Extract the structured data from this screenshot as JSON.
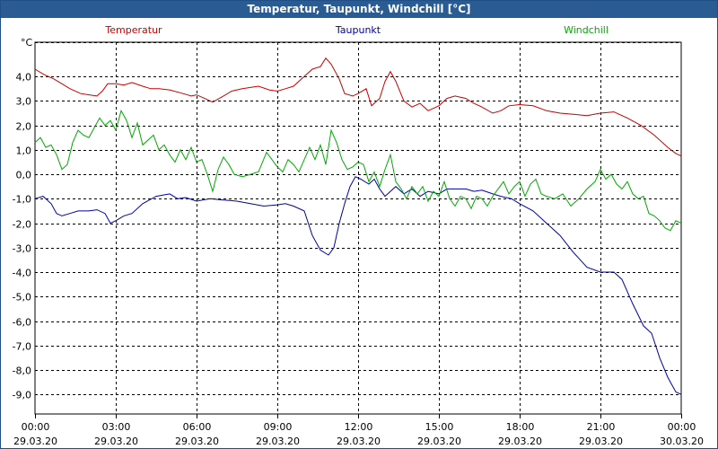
{
  "window": {
    "title": "Temperatur, Taupunkt, Windchill [°C]"
  },
  "chart_data": {
    "type": "line",
    "title": "Temperatur, Taupunkt, Windchill [°C]",
    "ylabel": "°C",
    "xlabel": "",
    "ylim": [
      -9.8,
      5.4
    ],
    "grid": true,
    "legend": "top",
    "y_ticks": [
      {
        "value": 4,
        "label": "4,0"
      },
      {
        "value": 3,
        "label": "3,0"
      },
      {
        "value": 2,
        "label": "2,0"
      },
      {
        "value": 1,
        "label": "1,0"
      },
      {
        "value": 0,
        "label": "0,0"
      },
      {
        "value": -1,
        "label": "-1,0"
      },
      {
        "value": -2,
        "label": "-2,0"
      },
      {
        "value": -3,
        "label": "-3,0"
      },
      {
        "value": -4,
        "label": "-4,0"
      },
      {
        "value": -5,
        "label": "-5,0"
      },
      {
        "value": -6,
        "label": "-6,0"
      },
      {
        "value": -7,
        "label": "-7,0"
      },
      {
        "value": -8,
        "label": "-8,0"
      },
      {
        "value": -9,
        "label": "-9,0"
      }
    ],
    "x_ticks": [
      {
        "hour": 0,
        "time": "00:00",
        "date": "29.03.20"
      },
      {
        "hour": 3,
        "time": "03:00",
        "date": "29.03.20"
      },
      {
        "hour": 6,
        "time": "06:00",
        "date": "29.03.20"
      },
      {
        "hour": 9,
        "time": "09:00",
        "date": "29.03.20"
      },
      {
        "hour": 12,
        "time": "12:00",
        "date": "29.03.20"
      },
      {
        "hour": 15,
        "time": "15:00",
        "date": "29.03.20"
      },
      {
        "hour": 18,
        "time": "18:00",
        "date": "29.03.20"
      },
      {
        "hour": 21,
        "time": "21:00",
        "date": "29.03.20"
      },
      {
        "hour": 24,
        "time": "00:00",
        "date": "30.03.20"
      }
    ],
    "series": [
      {
        "name": "Temperatur",
        "color": "#cc0000",
        "points": [
          [
            0,
            4.3
          ],
          [
            0.3,
            4.1
          ],
          [
            0.7,
            3.9
          ],
          [
            1.0,
            3.7
          ],
          [
            1.3,
            3.5
          ],
          [
            1.7,
            3.3
          ],
          [
            2.0,
            3.25
          ],
          [
            2.3,
            3.2
          ],
          [
            2.5,
            3.4
          ],
          [
            2.7,
            3.7
          ],
          [
            3.0,
            3.7
          ],
          [
            3.3,
            3.65
          ],
          [
            3.6,
            3.75
          ],
          [
            4.0,
            3.6
          ],
          [
            4.3,
            3.5
          ],
          [
            4.6,
            3.5
          ],
          [
            5.0,
            3.45
          ],
          [
            5.5,
            3.3
          ],
          [
            5.8,
            3.2
          ],
          [
            6.0,
            3.25
          ],
          [
            6.3,
            3.1
          ],
          [
            6.6,
            2.95
          ],
          [
            7.0,
            3.2
          ],
          [
            7.3,
            3.4
          ],
          [
            7.7,
            3.5
          ],
          [
            8.0,
            3.55
          ],
          [
            8.3,
            3.6
          ],
          [
            8.7,
            3.45
          ],
          [
            9.0,
            3.4
          ],
          [
            9.3,
            3.5
          ],
          [
            9.6,
            3.6
          ],
          [
            10.0,
            4.0
          ],
          [
            10.3,
            4.3
          ],
          [
            10.6,
            4.4
          ],
          [
            10.8,
            4.75
          ],
          [
            11.0,
            4.5
          ],
          [
            11.3,
            3.9
          ],
          [
            11.5,
            3.3
          ],
          [
            11.8,
            3.2
          ],
          [
            12.0,
            3.3
          ],
          [
            12.3,
            3.5
          ],
          [
            12.5,
            2.8
          ],
          [
            12.8,
            3.1
          ],
          [
            13.0,
            3.8
          ],
          [
            13.2,
            4.2
          ],
          [
            13.4,
            3.8
          ],
          [
            13.7,
            3.0
          ],
          [
            14.0,
            2.75
          ],
          [
            14.3,
            2.9
          ],
          [
            14.6,
            2.6
          ],
          [
            15.0,
            2.8
          ],
          [
            15.3,
            3.1
          ],
          [
            15.6,
            3.2
          ],
          [
            16.0,
            3.1
          ],
          [
            16.3,
            2.9
          ],
          [
            16.6,
            2.75
          ],
          [
            17.0,
            2.5
          ],
          [
            17.3,
            2.6
          ],
          [
            17.6,
            2.8
          ],
          [
            18.0,
            2.85
          ],
          [
            18.5,
            2.8
          ],
          [
            19.0,
            2.6
          ],
          [
            19.5,
            2.5
          ],
          [
            20.0,
            2.45
          ],
          [
            20.5,
            2.4
          ],
          [
            21.0,
            2.5
          ],
          [
            21.5,
            2.55
          ],
          [
            22.0,
            2.3
          ],
          [
            22.5,
            2.0
          ],
          [
            23.0,
            1.6
          ],
          [
            23.5,
            1.1
          ],
          [
            23.8,
            0.85
          ],
          [
            24.0,
            0.75
          ]
        ]
      },
      {
        "name": "Taupunkt",
        "color": "#0000aa",
        "points": [
          [
            0,
            -1.0
          ],
          [
            0.3,
            -0.9
          ],
          [
            0.6,
            -1.2
          ],
          [
            0.8,
            -1.6
          ],
          [
            1.0,
            -1.7
          ],
          [
            1.3,
            -1.6
          ],
          [
            1.6,
            -1.5
          ],
          [
            2.0,
            -1.5
          ],
          [
            2.3,
            -1.45
          ],
          [
            2.6,
            -1.6
          ],
          [
            2.8,
            -2.0
          ],
          [
            3.0,
            -1.9
          ],
          [
            3.3,
            -1.7
          ],
          [
            3.6,
            -1.6
          ],
          [
            4.0,
            -1.2
          ],
          [
            4.5,
            -0.9
          ],
          [
            5.0,
            -0.8
          ],
          [
            5.3,
            -1.0
          ],
          [
            5.6,
            -0.95
          ],
          [
            6.0,
            -1.1
          ],
          [
            6.5,
            -1.0
          ],
          [
            7.0,
            -1.05
          ],
          [
            7.5,
            -1.1
          ],
          [
            8.0,
            -1.2
          ],
          [
            8.5,
            -1.3
          ],
          [
            9.0,
            -1.25
          ],
          [
            9.3,
            -1.2
          ],
          [
            9.6,
            -1.3
          ],
          [
            10.0,
            -1.5
          ],
          [
            10.3,
            -2.5
          ],
          [
            10.6,
            -3.1
          ],
          [
            10.9,
            -3.3
          ],
          [
            11.1,
            -3.0
          ],
          [
            11.3,
            -2.0
          ],
          [
            11.5,
            -1.2
          ],
          [
            11.7,
            -0.5
          ],
          [
            11.9,
            -0.1
          ],
          [
            12.1,
            -0.2
          ],
          [
            12.4,
            -0.4
          ],
          [
            12.6,
            -0.2
          ],
          [
            12.8,
            -0.6
          ],
          [
            13.0,
            -0.9
          ],
          [
            13.2,
            -0.7
          ],
          [
            13.4,
            -0.5
          ],
          [
            13.7,
            -0.8
          ],
          [
            14.0,
            -0.6
          ],
          [
            14.3,
            -0.9
          ],
          [
            14.6,
            -0.7
          ],
          [
            15.0,
            -0.8
          ],
          [
            15.3,
            -0.6
          ],
          [
            15.7,
            -0.6
          ],
          [
            16.0,
            -0.6
          ],
          [
            16.3,
            -0.7
          ],
          [
            16.6,
            -0.65
          ],
          [
            17.0,
            -0.8
          ],
          [
            17.3,
            -0.9
          ],
          [
            17.7,
            -1.0
          ],
          [
            18.0,
            -1.2
          ],
          [
            18.5,
            -1.5
          ],
          [
            19.0,
            -2.0
          ],
          [
            19.5,
            -2.5
          ],
          [
            20.0,
            -3.2
          ],
          [
            20.5,
            -3.8
          ],
          [
            21.0,
            -4.0
          ],
          [
            21.5,
            -4.0
          ],
          [
            21.8,
            -4.3
          ],
          [
            22.2,
            -5.3
          ],
          [
            22.6,
            -6.2
          ],
          [
            22.9,
            -6.5
          ],
          [
            23.2,
            -7.5
          ],
          [
            23.5,
            -8.3
          ],
          [
            23.8,
            -8.9
          ],
          [
            24.0,
            -9.0
          ]
        ]
      },
      {
        "name": "Windchill",
        "color": "#00aa00",
        "points": [
          [
            0,
            1.3
          ],
          [
            0.2,
            1.5
          ],
          [
            0.4,
            1.1
          ],
          [
            0.6,
            1.2
          ],
          [
            0.8,
            0.8
          ],
          [
            1.0,
            0.2
          ],
          [
            1.2,
            0.4
          ],
          [
            1.4,
            1.3
          ],
          [
            1.6,
            1.8
          ],
          [
            1.8,
            1.6
          ],
          [
            2.0,
            1.5
          ],
          [
            2.2,
            1.9
          ],
          [
            2.4,
            2.3
          ],
          [
            2.6,
            2.0
          ],
          [
            2.8,
            2.2
          ],
          [
            3.0,
            1.8
          ],
          [
            3.2,
            2.6
          ],
          [
            3.4,
            2.2
          ],
          [
            3.6,
            1.5
          ],
          [
            3.8,
            2.1
          ],
          [
            4.0,
            1.2
          ],
          [
            4.2,
            1.4
          ],
          [
            4.4,
            1.6
          ],
          [
            4.6,
            1.0
          ],
          [
            4.8,
            1.2
          ],
          [
            5.0,
            0.8
          ],
          [
            5.2,
            0.5
          ],
          [
            5.4,
            1.0
          ],
          [
            5.6,
            0.6
          ],
          [
            5.8,
            1.1
          ],
          [
            6.0,
            0.5
          ],
          [
            6.2,
            0.6
          ],
          [
            6.4,
            0.0
          ],
          [
            6.6,
            -0.7
          ],
          [
            6.8,
            0.2
          ],
          [
            7.0,
            0.7
          ],
          [
            7.2,
            0.4
          ],
          [
            7.4,
            0.0
          ],
          [
            7.7,
            -0.1
          ],
          [
            8.0,
            0.0
          ],
          [
            8.3,
            0.1
          ],
          [
            8.6,
            0.9
          ],
          [
            8.8,
            0.6
          ],
          [
            9.0,
            0.3
          ],
          [
            9.2,
            0.1
          ],
          [
            9.4,
            0.6
          ],
          [
            9.6,
            0.4
          ],
          [
            9.8,
            0.1
          ],
          [
            10.0,
            0.6
          ],
          [
            10.2,
            1.1
          ],
          [
            10.4,
            0.6
          ],
          [
            10.6,
            1.2
          ],
          [
            10.8,
            0.4
          ],
          [
            11.0,
            1.8
          ],
          [
            11.2,
            1.3
          ],
          [
            11.4,
            0.6
          ],
          [
            11.6,
            0.2
          ],
          [
            11.8,
            0.3
          ],
          [
            12.0,
            0.5
          ],
          [
            12.2,
            0.4
          ],
          [
            12.4,
            -0.3
          ],
          [
            12.6,
            0.1
          ],
          [
            12.8,
            -0.5
          ],
          [
            13.0,
            0.2
          ],
          [
            13.2,
            0.8
          ],
          [
            13.4,
            -0.3
          ],
          [
            13.6,
            -0.6
          ],
          [
            13.8,
            -1.0
          ],
          [
            14.0,
            -0.5
          ],
          [
            14.2,
            -0.8
          ],
          [
            14.4,
            -0.5
          ],
          [
            14.6,
            -1.1
          ],
          [
            14.8,
            -0.7
          ],
          [
            15.0,
            -0.9
          ],
          [
            15.2,
            -0.3
          ],
          [
            15.4,
            -1.0
          ],
          [
            15.6,
            -1.3
          ],
          [
            15.8,
            -0.9
          ],
          [
            16.0,
            -1.0
          ],
          [
            16.2,
            -1.4
          ],
          [
            16.4,
            -0.9
          ],
          [
            16.6,
            -1.0
          ],
          [
            16.8,
            -1.3
          ],
          [
            17.0,
            -0.9
          ],
          [
            17.2,
            -0.6
          ],
          [
            17.4,
            -0.3
          ],
          [
            17.6,
            -0.8
          ],
          [
            17.8,
            -0.5
          ],
          [
            18.0,
            -0.3
          ],
          [
            18.2,
            -0.9
          ],
          [
            18.4,
            -0.4
          ],
          [
            18.6,
            -0.2
          ],
          [
            18.8,
            -0.8
          ],
          [
            19.0,
            -0.9
          ],
          [
            19.3,
            -1.0
          ],
          [
            19.6,
            -0.8
          ],
          [
            19.9,
            -1.3
          ],
          [
            20.2,
            -1.0
          ],
          [
            20.5,
            -0.6
          ],
          [
            20.8,
            -0.3
          ],
          [
            21.0,
            0.2
          ],
          [
            21.2,
            -0.2
          ],
          [
            21.4,
            0.0
          ],
          [
            21.6,
            -0.4
          ],
          [
            21.8,
            -0.6
          ],
          [
            22.0,
            -0.3
          ],
          [
            22.2,
            -0.8
          ],
          [
            22.4,
            -1.0
          ],
          [
            22.6,
            -0.9
          ],
          [
            22.8,
            -1.6
          ],
          [
            23.0,
            -1.7
          ],
          [
            23.2,
            -1.9
          ],
          [
            23.4,
            -2.2
          ],
          [
            23.6,
            -2.3
          ],
          [
            23.8,
            -1.9
          ],
          [
            24.0,
            -2.0
          ]
        ]
      }
    ]
  }
}
